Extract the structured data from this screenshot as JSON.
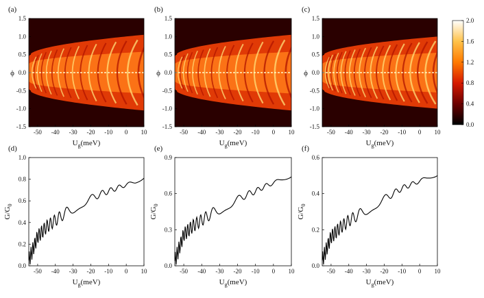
{
  "colorbar": {
    "ticks": [
      "2.0",
      "1.6",
      "1.2",
      "0.8",
      "0.4",
      "0.0"
    ],
    "colors": [
      "#000000",
      "#6b0000",
      "#d61a00",
      "#ff7a00",
      "#ffc24a",
      "#ffffff"
    ]
  },
  "chart_data": [
    {
      "panel": "(a)",
      "type": "heatmap",
      "xlabel_main": "U",
      "xlabel_sub": "g",
      "xlabel_rest": "(meV)",
      "ylabel": "ϕ",
      "xlim": [
        -55,
        10
      ],
      "ylim": [
        -1.5,
        1.5
      ],
      "xticks": [
        "-50",
        "-40",
        "-30",
        "-20",
        "-10",
        "0",
        "10"
      ],
      "yticks": [
        "1.5",
        "1.0",
        "0.5",
        "0.0",
        "-0.5",
        "-1.0",
        "-1.5"
      ],
      "envelope": {
        "start_x": -55,
        "start_halfwidth": 0.45,
        "end_x": 10,
        "end_halfwidth": 1.05
      },
      "color_scale": [
        0,
        2.0
      ]
    },
    {
      "panel": "(b)",
      "type": "heatmap",
      "xlabel_main": "U",
      "xlabel_sub": "g",
      "xlabel_rest": "(meV)",
      "ylabel": "ϕ",
      "xlim": [
        -55,
        10
      ],
      "ylim": [
        -1.5,
        1.5
      ],
      "xticks": [
        "-50",
        "-40",
        "-30",
        "-20",
        "-10",
        "0",
        "10"
      ],
      "yticks": [
        "1.5",
        "1.0",
        "0.5",
        "0.0",
        "-0.5",
        "-1.0",
        "-1.5"
      ],
      "envelope": {
        "start_x": -55,
        "start_halfwidth": 0.45,
        "end_x": 10,
        "end_halfwidth": 1.05
      },
      "color_scale": [
        0,
        2.0
      ]
    },
    {
      "panel": "(c)",
      "type": "heatmap",
      "xlabel_main": "U",
      "xlabel_sub": "g",
      "xlabel_rest": "(meV)",
      "ylabel": "ϕ",
      "xlim": [
        -55,
        10
      ],
      "ylim": [
        -1.5,
        1.5
      ],
      "xticks": [
        "-50",
        "-40",
        "-30",
        "-20",
        "-10",
        "0",
        "10"
      ],
      "yticks": [
        "1.5",
        "1.0",
        "0.5",
        "0.0",
        "-0.5",
        "-1.0",
        "-1.5"
      ],
      "envelope": {
        "start_x": -55,
        "start_halfwidth": 0.45,
        "end_x": 10,
        "end_halfwidth": 1.0
      },
      "color_scale": [
        0,
        2.0
      ]
    },
    {
      "panel": "(d)",
      "type": "line",
      "xlabel_main": "U",
      "xlabel_sub": "g",
      "xlabel_rest": "(meV)",
      "ylabel_main": "G/G",
      "ylabel_sub": "0",
      "xlim": [
        -55,
        10
      ],
      "ylim": [
        0,
        1.0
      ],
      "xticks": [
        "-50",
        "-40",
        "-30",
        "-20",
        "-10",
        "0",
        "10"
      ],
      "yticks": [
        "1.0",
        "0.8",
        "0.6",
        "0.4",
        "0.2",
        "0.0"
      ],
      "series": [
        {
          "x": [
            -55,
            -50,
            -45,
            -40,
            -35,
            -30,
            -25,
            -20,
            -15,
            -10,
            -5,
            0,
            5,
            10
          ],
          "y": [
            0.05,
            0.27,
            0.36,
            0.42,
            0.48,
            0.53,
            0.58,
            0.62,
            0.66,
            0.69,
            0.72,
            0.75,
            0.77,
            0.81
          ]
        }
      ]
    },
    {
      "panel": "(e)",
      "type": "line",
      "xlabel_main": "U",
      "xlabel_sub": "g",
      "xlabel_rest": "(meV)",
      "ylabel_main": "G/G",
      "ylabel_sub": "0",
      "xlim": [
        -55,
        10
      ],
      "ylim": [
        0,
        0.9
      ],
      "xticks": [
        "-50",
        "-40",
        "-30",
        "-20",
        "-10",
        "0",
        "10"
      ],
      "yticks": [
        "0.9",
        "0.6",
        "0.3",
        "0.0"
      ],
      "series": [
        {
          "x": [
            -55,
            -50,
            -45,
            -40,
            -35,
            -30,
            -25,
            -20,
            -15,
            -10,
            -5,
            0,
            5,
            10
          ],
          "y": [
            0.04,
            0.26,
            0.33,
            0.38,
            0.43,
            0.47,
            0.51,
            0.55,
            0.59,
            0.62,
            0.66,
            0.69,
            0.72,
            0.74
          ]
        }
      ]
    },
    {
      "panel": "(f)",
      "type": "line",
      "xlabel_main": "U",
      "xlabel_sub": "g",
      "xlabel_rest": "(meV)",
      "ylabel_main": "G/G",
      "ylabel_sub": "0",
      "xlim": [
        -55,
        10
      ],
      "ylim": [
        0,
        0.6
      ],
      "xticks": [
        "-50",
        "-40",
        "-30",
        "-20",
        "-10",
        "0",
        "10"
      ],
      "yticks": [
        "0.6",
        "0.4",
        "0.2",
        "0.0"
      ],
      "series": [
        {
          "x": [
            -55,
            -50,
            -45,
            -40,
            -35,
            -30,
            -25,
            -20,
            -15,
            -10,
            -5,
            0,
            5,
            10
          ],
          "y": [
            0.03,
            0.16,
            0.21,
            0.25,
            0.28,
            0.31,
            0.34,
            0.37,
            0.4,
            0.43,
            0.45,
            0.47,
            0.49,
            0.5
          ]
        }
      ]
    }
  ]
}
